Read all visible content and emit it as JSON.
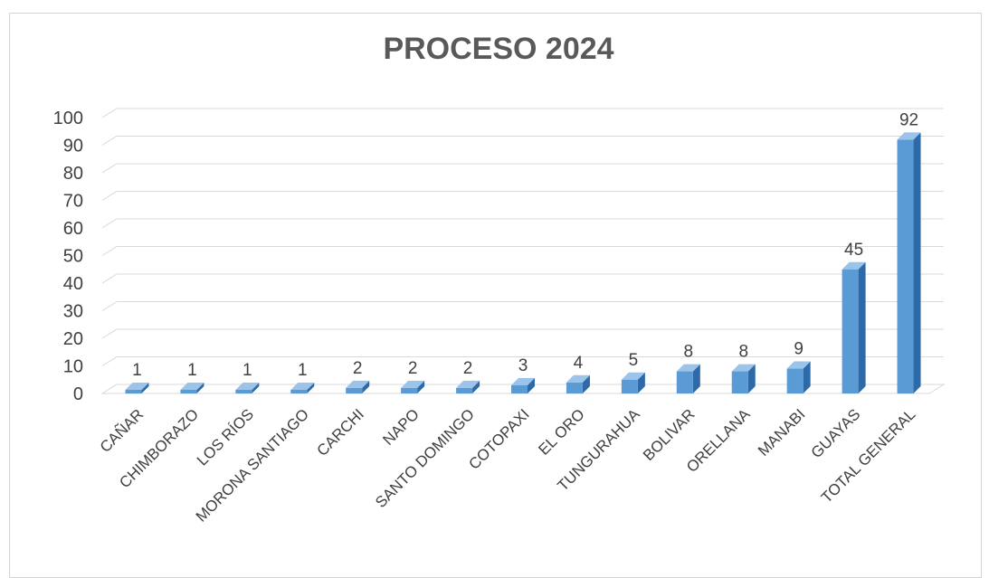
{
  "chart_data": {
    "type": "bar",
    "title": "PROCESO 2024",
    "categories": [
      "CAÑAR",
      "CHIMBORAZO",
      "LOS RÍOS",
      "MORONA SANTIAGO",
      "CARCHI",
      "NAPO",
      "SANTO DOMINGO",
      "COTOPAXI",
      "EL ORO",
      "TUNGURAHUA",
      "BOLIVAR",
      "ORELLANA",
      "MANABI",
      "GUAYAS",
      "TOTAL GENERAL"
    ],
    "values": [
      1,
      1,
      1,
      1,
      2,
      2,
      2,
      3,
      4,
      5,
      8,
      8,
      9,
      45,
      92
    ],
    "yticks": [
      "0",
      "10",
      "20",
      "30",
      "40",
      "50",
      "60",
      "70",
      "80",
      "90",
      "100"
    ],
    "ylim": [
      0,
      100
    ],
    "grid": true,
    "bar_style": "3d-column",
    "colors": {
      "bar_front": "#5b9bd5",
      "bar_side": "#2e6aa8",
      "bar_top": "#9cc3ea",
      "grid": "#d9d9d9",
      "title": "#595959",
      "text": "#404040"
    }
  }
}
